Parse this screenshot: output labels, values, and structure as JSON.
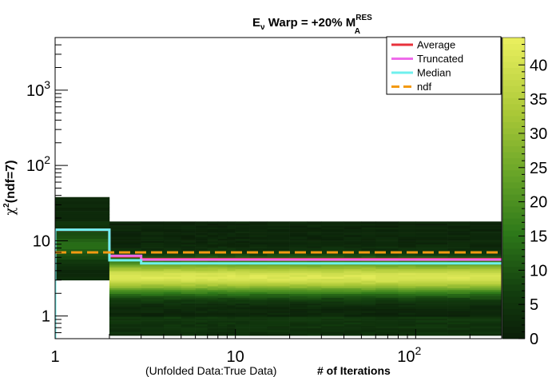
{
  "chart_data": {
    "type": "heatmap",
    "title": {
      "main": "E",
      "nu_sub": "ν",
      "rest": " Warp = +20% M",
      "sup": "RES",
      "sub": "A"
    },
    "ylabel": {
      "chi": "χ",
      "sup": "2",
      "rest": "(ndf=7)"
    },
    "xlabel": {
      "prefix": "(Unfolded Data:True Data)",
      "main": "# of Iterations"
    },
    "x_scale": "log",
    "y_scale": "log",
    "xlim": [
      1,
      300
    ],
    "ylim": [
      0.5,
      5000
    ],
    "x_ticks": [
      {
        "v": 1,
        "label": "1"
      },
      {
        "v": 10,
        "label": "10"
      },
      {
        "v": 100,
        "base": "10",
        "exp": "2"
      }
    ],
    "y_ticks": [
      {
        "v": 1,
        "label": "1"
      },
      {
        "v": 10,
        "label": "10"
      },
      {
        "v": 100,
        "base": "10",
        "exp": "2"
      },
      {
        "v": 1000,
        "base": "10",
        "exp": "3"
      }
    ],
    "z_range": [
      0,
      44
    ],
    "z_ticks": [
      0,
      5,
      10,
      15,
      20,
      25,
      30,
      35,
      40
    ],
    "legend": {
      "placement": "top-right",
      "entries": [
        {
          "name": "Average",
          "color": "#e8323b",
          "style": "solid"
        },
        {
          "name": "Truncated",
          "color": "#ee6bea",
          "style": "solid"
        },
        {
          "name": "Median",
          "color": "#6ff0ee",
          "style": "solid"
        },
        {
          "name": "ndf",
          "color": "#f39a12",
          "style": "dashed"
        }
      ]
    },
    "series": [
      {
        "name": "Average",
        "x": [
          1,
          2,
          3,
          300
        ],
        "y": [
          14,
          6.2,
          5.7,
          5.8
        ]
      },
      {
        "name": "Truncated",
        "x": [
          1,
          2,
          3,
          300
        ],
        "y": [
          14,
          6.3,
          5.6,
          5.5
        ]
      },
      {
        "name": "Median",
        "x": [
          1,
          2,
          3,
          300
        ],
        "y": [
          14,
          5.5,
          5.0,
          5.0
        ]
      },
      {
        "name": "ndf",
        "x": [
          1,
          300
        ],
        "y": [
          7,
          7
        ]
      }
    ]
  }
}
